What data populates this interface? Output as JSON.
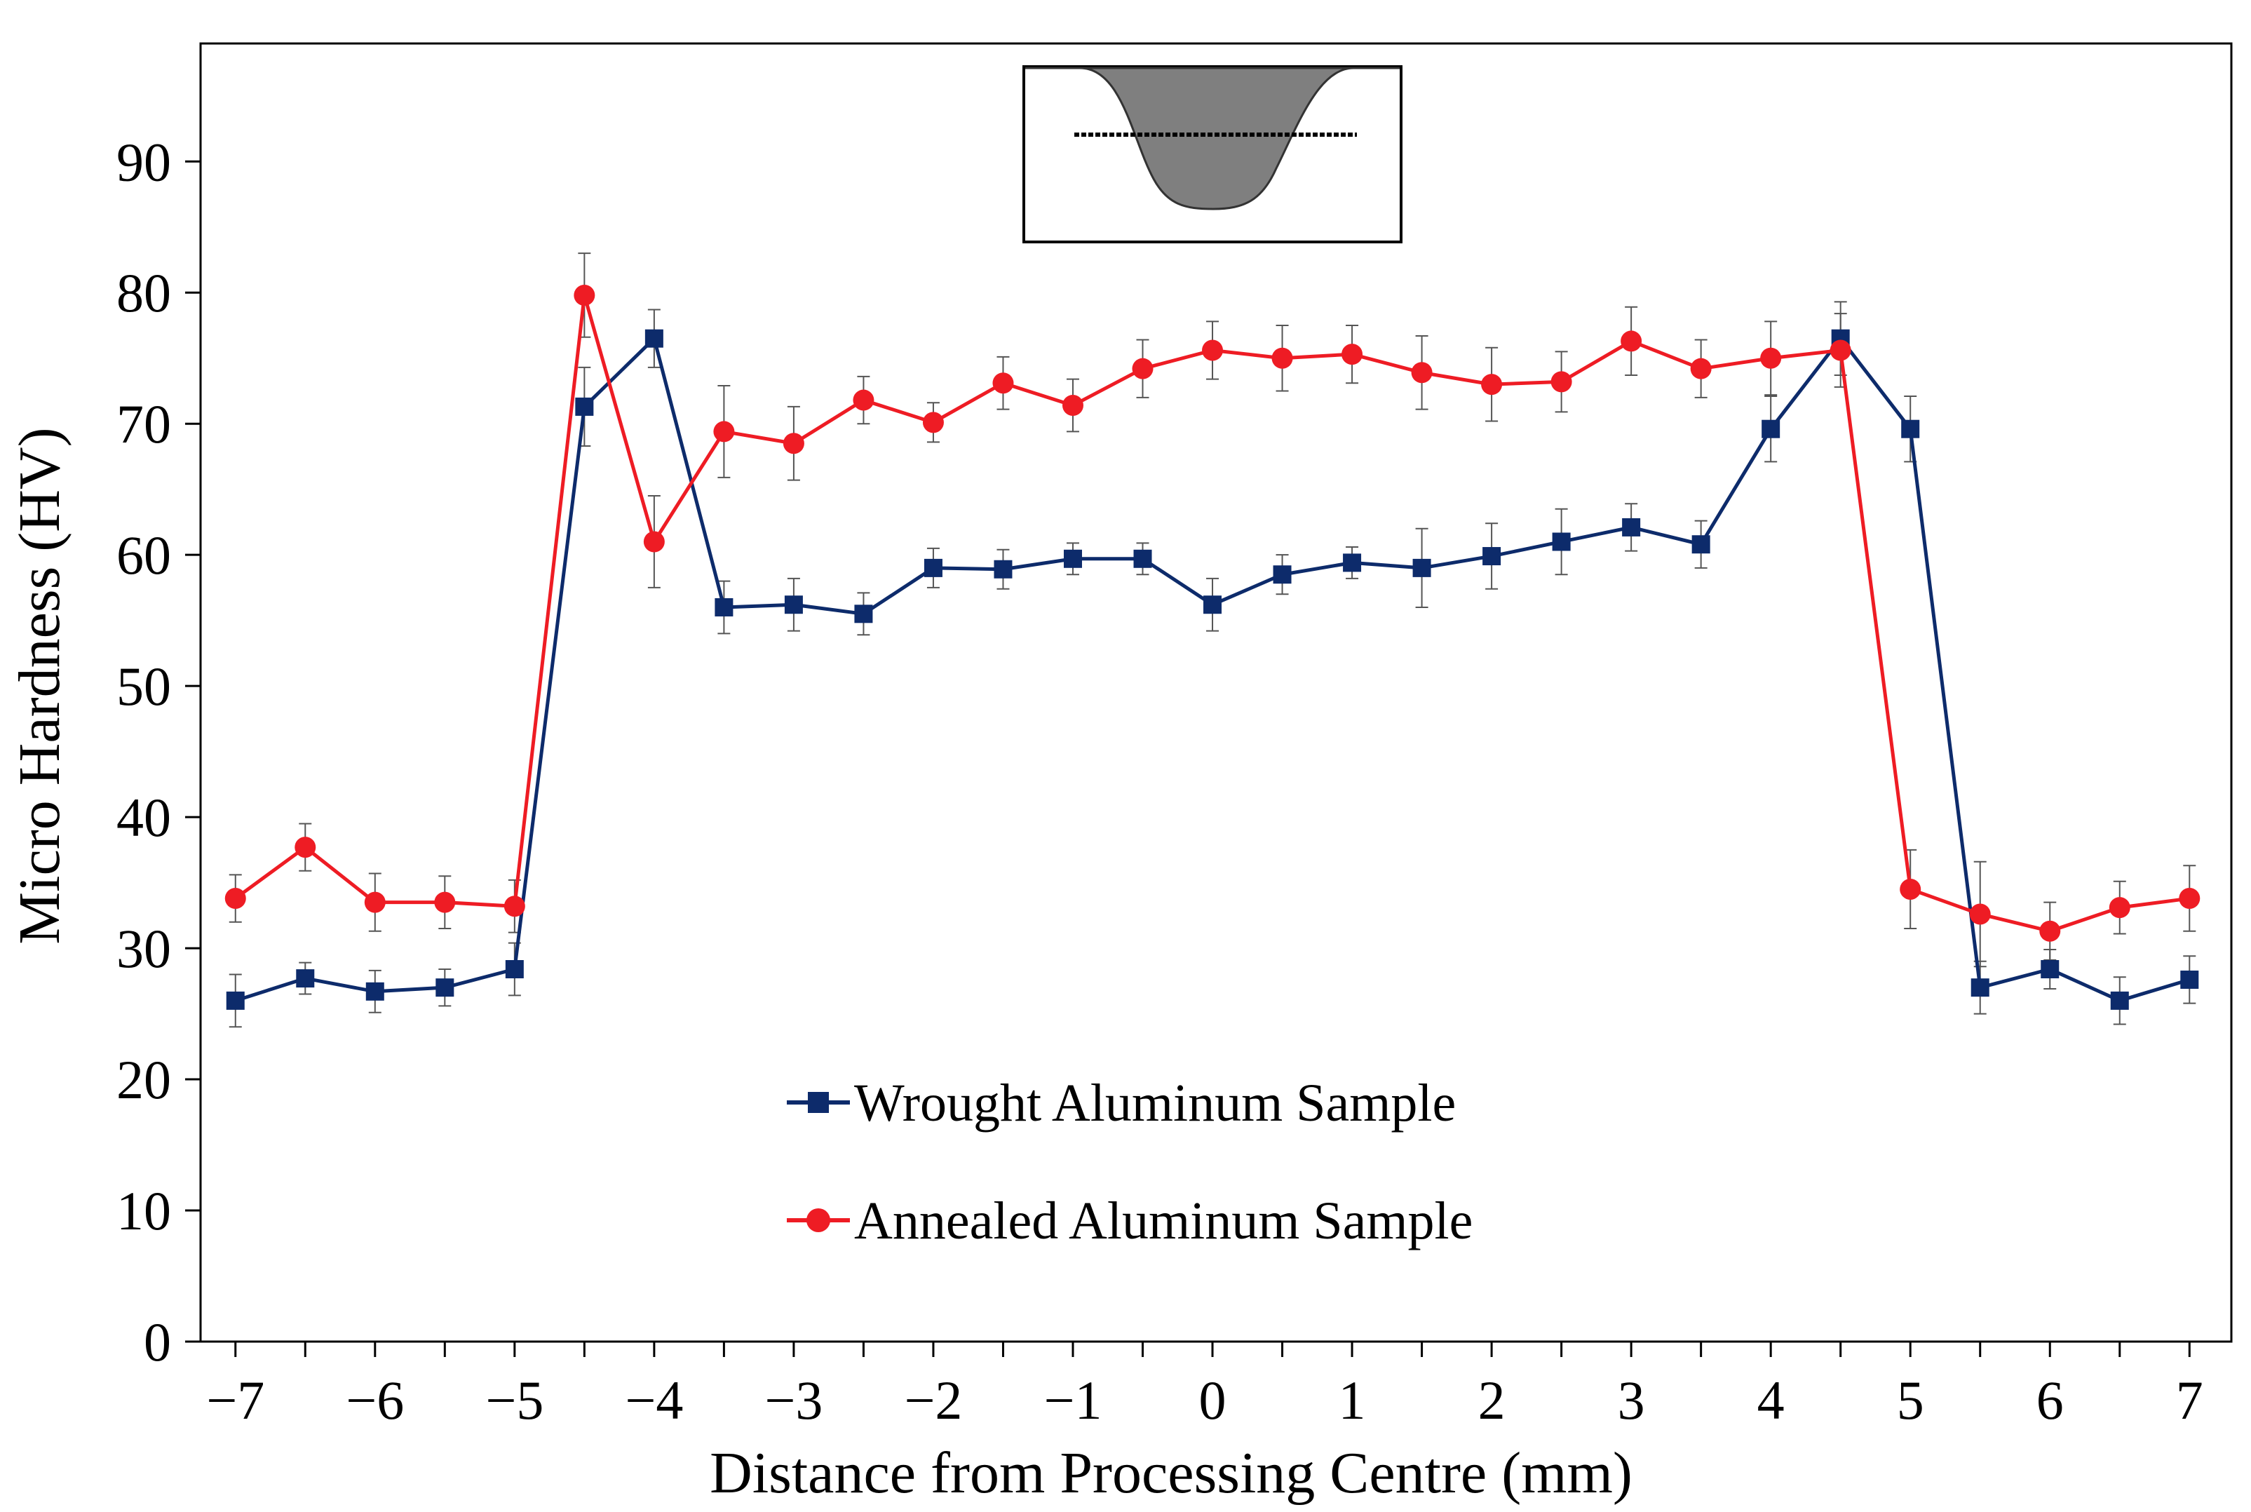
{
  "chart_data": {
    "type": "line",
    "title": "",
    "xlabel": "Distance from Processing Centre (mm)",
    "ylabel": "Micro Hardness (HV)",
    "xlim": [
      -7.25,
      7.3
    ],
    "ylim": [
      0,
      99
    ],
    "x_ticks": [
      -7,
      -6,
      -5,
      -4,
      -3,
      -2,
      -1,
      0,
      1,
      2,
      3,
      4,
      5,
      6,
      7
    ],
    "x_tick_labels": [
      "−7",
      "−6",
      "−5",
      "−4",
      "−3",
      "−2",
      "−1",
      "0",
      "1",
      "2",
      "3",
      "4",
      "5",
      "6",
      "7"
    ],
    "y_ticks": [
      0,
      10,
      20,
      30,
      40,
      50,
      60,
      70,
      80,
      90
    ],
    "y_tick_labels": [
      "0",
      "10",
      "20",
      "30",
      "40",
      "50",
      "60",
      "70",
      "80",
      "90"
    ],
    "grid": false,
    "legend_position": "lower-center",
    "x": [
      -7,
      -6.5,
      -6,
      -5.5,
      -5,
      -4.5,
      -4,
      -3.5,
      -3,
      -2.5,
      -2,
      -1.5,
      -1,
      -0.5,
      0,
      0.5,
      1,
      1.5,
      2,
      2.5,
      3,
      3.5,
      4,
      4.5,
      5,
      5.5,
      6,
      6.5,
      7
    ],
    "series": [
      {
        "name": "Wrought Aluminum Sample",
        "color": "#0d2b6b",
        "marker": "square",
        "values": [
          26.0,
          27.7,
          26.7,
          27.0,
          28.4,
          71.3,
          76.5,
          56.0,
          56.2,
          55.5,
          59.0,
          58.9,
          59.7,
          59.7,
          56.2,
          58.5,
          59.4,
          59.0,
          59.9,
          61.0,
          62.1,
          60.8,
          69.6,
          76.5,
          69.6,
          27.0,
          28.4,
          26.0,
          27.6
        ],
        "errors": [
          2.0,
          1.2,
          1.6,
          1.4,
          2.0,
          3.0,
          2.2,
          2.0,
          2.0,
          1.6,
          1.5,
          1.5,
          1.2,
          1.2,
          2.0,
          1.5,
          1.2,
          3.0,
          2.5,
          2.5,
          1.8,
          1.8,
          2.5,
          2.8,
          2.5,
          2.0,
          1.5,
          1.8,
          1.8
        ]
      },
      {
        "name": "Annealed Aluminum Sample",
        "color": "#ee1c24",
        "marker": "circle",
        "values": [
          33.8,
          37.7,
          33.5,
          33.5,
          33.2,
          79.8,
          61.0,
          69.4,
          68.5,
          71.8,
          70.1,
          73.1,
          71.4,
          74.2,
          75.6,
          75.0,
          75.3,
          73.9,
          73.0,
          73.2,
          76.3,
          74.2,
          75.0,
          75.6,
          34.5,
          32.6,
          31.3,
          33.1,
          33.8
        ],
        "errors": [
          1.8,
          1.8,
          2.2,
          2.0,
          2.0,
          3.2,
          3.5,
          3.5,
          2.8,
          1.8,
          1.5,
          2.0,
          2.0,
          2.2,
          2.2,
          2.5,
          2.2,
          2.8,
          2.8,
          2.3,
          2.6,
          2.2,
          2.8,
          2.8,
          3.0,
          4.0,
          2.2,
          2.0,
          2.5
        ]
      }
    ]
  },
  "inset": {
    "fill_color": "#7f7f7f"
  }
}
